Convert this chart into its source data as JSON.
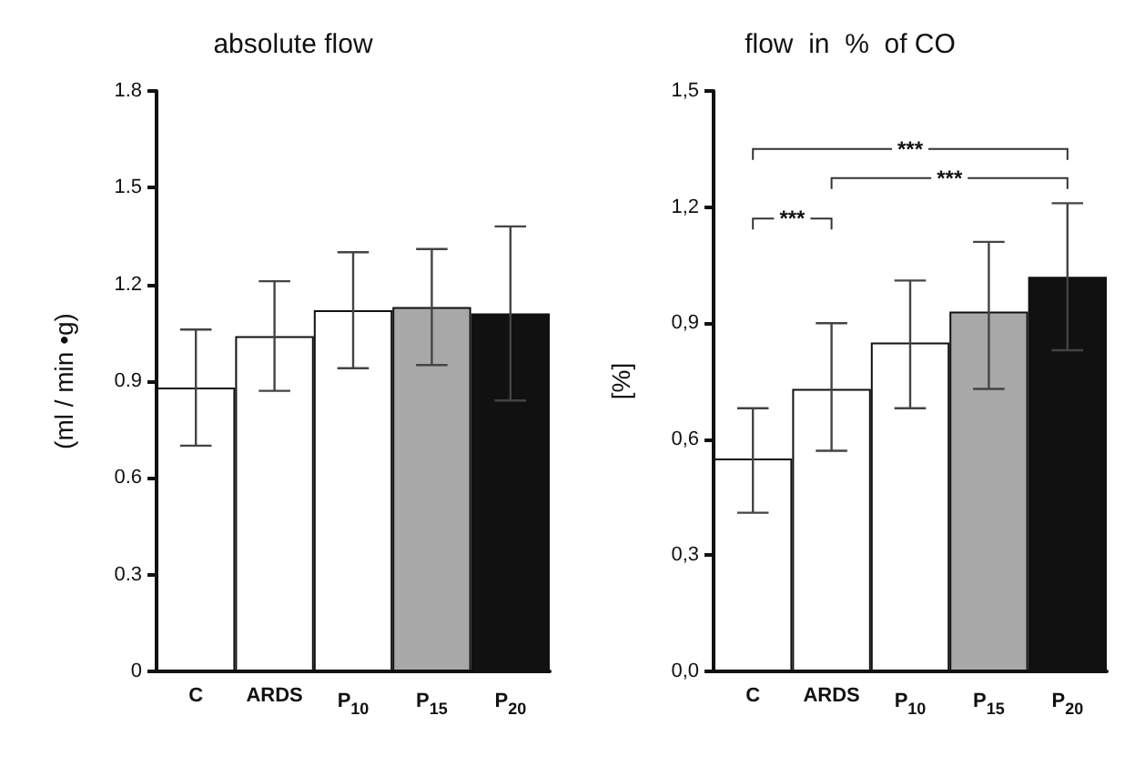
{
  "chart_data": [
    {
      "type": "bar",
      "title": "absolute flow",
      "ylabel": "(ml / min •g)",
      "categories": [
        "C",
        "ARDS",
        "P$_{10}$",
        "P$_{15}$",
        "P$_{20}$"
      ],
      "values": [
        0.88,
        1.04,
        1.12,
        1.13,
        1.11
      ],
      "errors": [
        0.18,
        0.17,
        0.18,
        0.18,
        0.27
      ],
      "colors": [
        "#ffffff",
        "#ffffff",
        "#ffffff",
        "#a8a8a8",
        "#111111"
      ],
      "ylim": [
        0,
        1.8
      ],
      "yticks": [
        0,
        0.3,
        0.6,
        0.9,
        1.2,
        1.5,
        1.8
      ],
      "grid": false
    },
    {
      "type": "bar",
      "title": "flow  in  %  of CO",
      "ylabel": "[%]",
      "categories": [
        "C",
        "ARDS",
        "P$_{10}$",
        "P$_{15}$",
        "P$_{20}$"
      ],
      "values": [
        0.55,
        0.73,
        0.85,
        0.93,
        1.02
      ],
      "errors": [
        [
          0.41,
          0.68
        ],
        [
          0.57,
          0.9
        ],
        [
          0.68,
          1.01
        ],
        [
          0.73,
          1.11
        ],
        [
          0.83,
          1.21
        ]
      ],
      "colors": [
        "#ffffff",
        "#ffffff",
        "#ffffff",
        "#a8a8a8",
        "#111111"
      ],
      "ylim": [
        0,
        1.5
      ],
      "yticks": [
        {
          "value": 0,
          "label": "0,0"
        },
        {
          "value": 0.3,
          "label": "0,3"
        },
        {
          "value": 0.6,
          "label": "0,6"
        },
        {
          "value": 0.9,
          "label": "0,9"
        },
        {
          "value": 1.2,
          "label": "1,2"
        },
        {
          "value": 1.5,
          "label": "1,5"
        }
      ],
      "grid": false,
      "annotations": [
        "***",
        "***",
        "***"
      ]
    }
  ]
}
